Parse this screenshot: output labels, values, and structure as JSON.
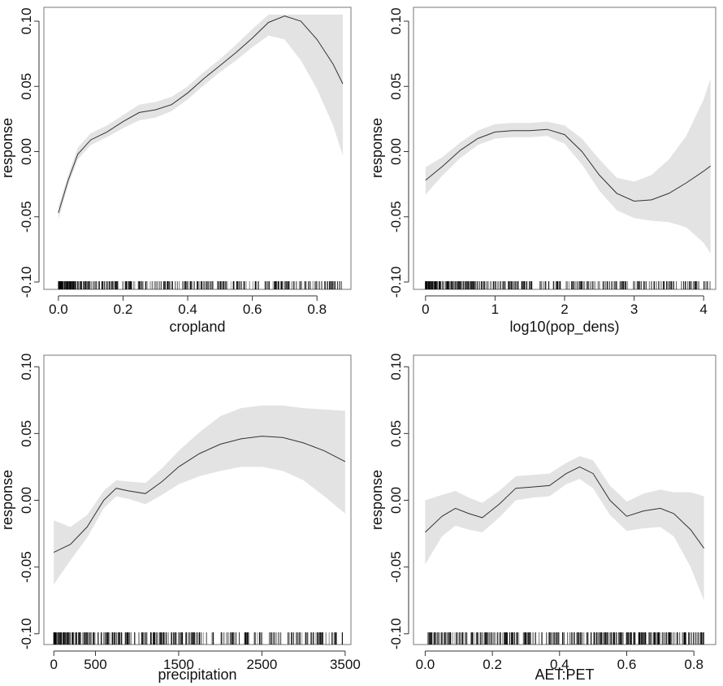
{
  "colors": {
    "band": "#e3e3e3",
    "line": "#333333",
    "rug": "#000000",
    "frame": "#777777"
  },
  "chart_data": [
    {
      "type": "line",
      "xlabel": "cropland",
      "ylabel": "response",
      "xlim": [
        -0.04,
        0.9
      ],
      "ylim": [
        -0.105,
        0.105
      ],
      "xticks": [
        0.0,
        0.2,
        0.4,
        0.6,
        0.8
      ],
      "xtick_labels": [
        "0.0",
        "0.2",
        "0.4",
        "0.6",
        "0.8"
      ],
      "yticks": [
        -0.1,
        -0.05,
        0.0,
        0.05,
        0.1
      ],
      "ytick_labels": [
        "-0.10",
        "-0.05",
        "0.00",
        "0.05",
        "0.10"
      ],
      "series": [
        {
          "x": [
            0.0,
            0.03,
            0.06,
            0.1,
            0.15,
            0.2,
            0.25,
            0.3,
            0.35,
            0.4,
            0.45,
            0.5,
            0.55,
            0.6,
            0.65,
            0.7,
            0.75,
            0.8,
            0.85,
            0.88
          ],
          "y": [
            -0.047,
            -0.022,
            -0.002,
            0.009,
            0.015,
            0.023,
            0.03,
            0.032,
            0.036,
            0.045,
            0.056,
            0.066,
            0.076,
            0.087,
            0.099,
            0.104,
            0.1,
            0.086,
            0.067,
            0.052
          ],
          "lower": [
            -0.052,
            -0.026,
            -0.006,
            0.005,
            0.011,
            0.018,
            0.024,
            0.026,
            0.031,
            0.04,
            0.051,
            0.061,
            0.07,
            0.08,
            0.089,
            0.086,
            0.07,
            0.048,
            0.02,
            -0.003
          ],
          "upper": [
            -0.042,
            -0.018,
            0.003,
            0.014,
            0.02,
            0.028,
            0.036,
            0.038,
            0.042,
            0.05,
            0.061,
            0.071,
            0.082,
            0.094,
            0.105,
            0.105,
            0.105,
            0.105,
            0.105,
            0.105
          ]
        }
      ]
    },
    {
      "type": "line",
      "xlabel": "log10(pop_dens)",
      "ylabel": "response",
      "xlim": [
        -0.15,
        4.15
      ],
      "ylim": [
        -0.105,
        0.105
      ],
      "xticks": [
        0,
        1,
        2,
        3,
        4
      ],
      "xtick_labels": [
        "0",
        "1",
        "2",
        "3",
        "4"
      ],
      "yticks": [
        -0.1,
        -0.05,
        0.0,
        0.05,
        0.1
      ],
      "ytick_labels": [
        "-0.10",
        "-0.05",
        "0.00",
        "0.05",
        "0.10"
      ],
      "series": [
        {
          "x": [
            0.0,
            0.25,
            0.5,
            0.75,
            1.0,
            1.25,
            1.5,
            1.75,
            2.0,
            2.25,
            2.5,
            2.75,
            3.0,
            3.25,
            3.5,
            3.75,
            4.0,
            4.1
          ],
          "y": [
            -0.022,
            -0.011,
            0.001,
            0.01,
            0.015,
            0.016,
            0.016,
            0.017,
            0.013,
            0.0,
            -0.018,
            -0.032,
            -0.038,
            -0.037,
            -0.032,
            -0.024,
            -0.015,
            -0.011
          ],
          "lower": [
            -0.033,
            -0.018,
            -0.005,
            0.005,
            0.01,
            0.011,
            0.011,
            0.012,
            0.006,
            -0.01,
            -0.03,
            -0.045,
            -0.051,
            -0.053,
            -0.054,
            -0.058,
            -0.07,
            -0.078
          ],
          "upper": [
            -0.012,
            -0.004,
            0.007,
            0.016,
            0.021,
            0.022,
            0.022,
            0.023,
            0.02,
            0.01,
            -0.006,
            -0.02,
            -0.023,
            -0.018,
            -0.006,
            0.012,
            0.04,
            0.056
          ]
        }
      ]
    },
    {
      "type": "line",
      "xlabel": "precipitation",
      "ylabel": "response",
      "xlim": [
        -100,
        3550
      ],
      "ylim": [
        -0.105,
        0.105
      ],
      "xticks": [
        0,
        500,
        1500,
        2500,
        3500
      ],
      "xtick_labels": [
        "0",
        "500",
        "1500",
        "2500",
        "3500"
      ],
      "yticks": [
        -0.1,
        -0.05,
        0.0,
        0.05,
        0.1
      ],
      "ytick_labels": [
        "-0.10",
        "-0.05",
        "0.00",
        "0.05",
        "0.10"
      ],
      "series": [
        {
          "x": [
            0,
            200,
            400,
            600,
            750,
            900,
            1100,
            1300,
            1500,
            1750,
            2000,
            2250,
            2500,
            2750,
            3000,
            3250,
            3500
          ],
          "y": [
            -0.039,
            -0.033,
            -0.02,
            0.0,
            0.009,
            0.007,
            0.005,
            0.014,
            0.025,
            0.035,
            0.042,
            0.046,
            0.048,
            0.047,
            0.043,
            0.037,
            0.029
          ],
          "lower": [
            -0.063,
            -0.045,
            -0.028,
            -0.006,
            0.003,
            0.001,
            -0.003,
            0.004,
            0.012,
            0.018,
            0.022,
            0.025,
            0.025,
            0.022,
            0.015,
            0.003,
            -0.01
          ],
          "upper": [
            -0.015,
            -0.02,
            -0.011,
            0.007,
            0.015,
            0.014,
            0.013,
            0.024,
            0.037,
            0.051,
            0.063,
            0.069,
            0.071,
            0.071,
            0.069,
            0.068,
            0.067
          ]
        }
      ]
    },
    {
      "type": "line",
      "xlabel": "AET:PET",
      "ylabel": "response",
      "xlim": [
        -0.03,
        0.86
      ],
      "ylim": [
        -0.105,
        0.105
      ],
      "xticks": [
        0.0,
        0.2,
        0.4,
        0.6,
        0.8
      ],
      "xtick_labels": [
        "0.0",
        "0.2",
        "0.4",
        "0.6",
        "0.8"
      ],
      "yticks": [
        -0.1,
        -0.05,
        0.0,
        0.05,
        0.1
      ],
      "ytick_labels": [
        "-0.10",
        "-0.05",
        "0.00",
        "0.05",
        "0.10"
      ],
      "series": [
        {
          "x": [
            0.0,
            0.05,
            0.09,
            0.13,
            0.17,
            0.22,
            0.27,
            0.32,
            0.37,
            0.42,
            0.46,
            0.5,
            0.55,
            0.6,
            0.65,
            0.7,
            0.74,
            0.79,
            0.83
          ],
          "y": [
            -0.024,
            -0.012,
            -0.006,
            -0.01,
            -0.013,
            -0.003,
            0.009,
            0.01,
            0.011,
            0.02,
            0.025,
            0.02,
            0.0,
            -0.012,
            -0.008,
            -0.006,
            -0.01,
            -0.022,
            -0.036
          ],
          "lower": [
            -0.048,
            -0.027,
            -0.019,
            -0.022,
            -0.024,
            -0.013,
            0.0,
            0.002,
            0.003,
            0.012,
            0.016,
            0.009,
            -0.011,
            -0.023,
            -0.021,
            -0.02,
            -0.027,
            -0.05,
            -0.075
          ],
          "upper": [
            0.0,
            0.004,
            0.007,
            0.002,
            -0.002,
            0.007,
            0.018,
            0.019,
            0.02,
            0.028,
            0.033,
            0.03,
            0.011,
            -0.001,
            0.005,
            0.008,
            0.006,
            0.006,
            0.003
          ]
        }
      ]
    }
  ]
}
